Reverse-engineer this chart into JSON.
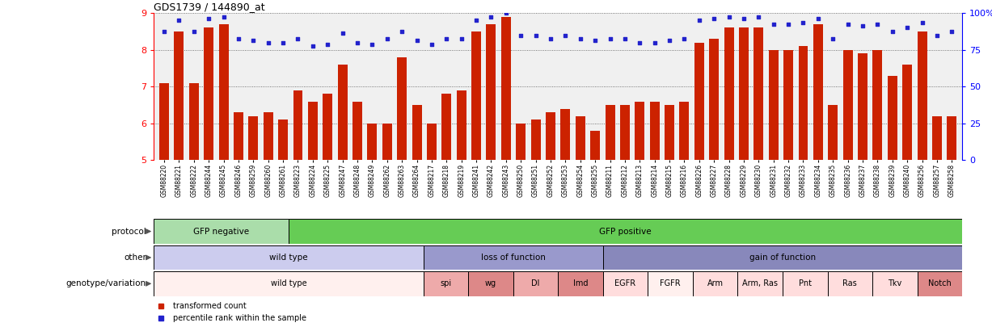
{
  "title": "GDS1739 / 144890_at",
  "samples": [
    "GSM88220",
    "GSM88221",
    "GSM88222",
    "GSM88244",
    "GSM88245",
    "GSM88246",
    "GSM88259",
    "GSM88260",
    "GSM88261",
    "GSM88223",
    "GSM88224",
    "GSM88225",
    "GSM88247",
    "GSM88248",
    "GSM88249",
    "GSM88262",
    "GSM88263",
    "GSM88264",
    "GSM88217",
    "GSM88218",
    "GSM88219",
    "GSM88241",
    "GSM88242",
    "GSM88243",
    "GSM88250",
    "GSM88251",
    "GSM88252",
    "GSM88253",
    "GSM88254",
    "GSM88255",
    "GSM88211",
    "GSM88212",
    "GSM88213",
    "GSM88214",
    "GSM88215",
    "GSM88216",
    "GSM88226",
    "GSM88227",
    "GSM88228",
    "GSM88229",
    "GSM88230",
    "GSM88231",
    "GSM88232",
    "GSM88233",
    "GSM88234",
    "GSM88235",
    "GSM88236",
    "GSM88237",
    "GSM88238",
    "GSM88239",
    "GSM88240",
    "GSM88256",
    "GSM88257",
    "GSM88258"
  ],
  "bar_values": [
    7.1,
    8.5,
    7.1,
    8.6,
    8.7,
    6.3,
    6.2,
    6.3,
    6.1,
    6.9,
    6.6,
    6.8,
    7.6,
    6.6,
    6.0,
    6.0,
    7.8,
    6.5,
    6.0,
    6.8,
    6.9,
    8.5,
    8.7,
    8.9,
    6.0,
    6.1,
    6.3,
    6.4,
    6.2,
    5.8,
    6.5,
    6.5,
    6.6,
    6.6,
    6.5,
    6.6,
    8.2,
    8.3,
    8.6,
    8.6,
    8.6,
    8.0,
    8.0,
    8.1,
    8.7,
    6.5,
    8.0,
    7.9,
    8.0,
    7.3,
    7.6,
    8.5,
    6.2,
    6.2
  ],
  "dot_values": [
    8.5,
    8.8,
    8.5,
    8.85,
    8.9,
    8.3,
    8.25,
    8.2,
    8.2,
    8.3,
    8.1,
    8.15,
    8.45,
    8.2,
    8.15,
    8.3,
    8.5,
    8.25,
    8.15,
    8.3,
    8.3,
    8.8,
    8.9,
    9.0,
    8.4,
    8.4,
    8.3,
    8.4,
    8.3,
    8.25,
    8.3,
    8.3,
    8.2,
    8.2,
    8.25,
    8.3,
    8.8,
    8.85,
    8.9,
    8.85,
    8.9,
    8.7,
    8.7,
    8.75,
    8.85,
    8.3,
    8.7,
    8.65,
    8.7,
    8.5,
    8.6,
    8.75,
    8.4,
    8.5
  ],
  "ylim_left": [
    5,
    9
  ],
  "yticks_left": [
    5,
    6,
    7,
    8,
    9
  ],
  "ylim_right": [
    0,
    100
  ],
  "yticks_right": [
    0,
    25,
    50,
    75,
    100
  ],
  "bar_color": "#cc2200",
  "dot_color": "#2222cc",
  "chart_bg": "#f0f0f0",
  "protocol_row": {
    "groups": [
      {
        "label": "GFP negative",
        "start": 0,
        "end": 9,
        "color": "#aaddaa"
      },
      {
        "label": "GFP positive",
        "start": 9,
        "end": 54,
        "color": "#66cc55"
      }
    ]
  },
  "other_row": {
    "groups": [
      {
        "label": "wild type",
        "start": 0,
        "end": 18,
        "color": "#ccccee"
      },
      {
        "label": "loss of function",
        "start": 18,
        "end": 30,
        "color": "#9999cc"
      },
      {
        "label": "gain of function",
        "start": 30,
        "end": 54,
        "color": "#8888bb"
      }
    ]
  },
  "genotype_row": {
    "groups": [
      {
        "label": "wild type",
        "start": 0,
        "end": 18,
        "color": "#fff0ee"
      },
      {
        "label": "spi",
        "start": 18,
        "end": 21,
        "color": "#eeaaaa"
      },
      {
        "label": "wg",
        "start": 21,
        "end": 24,
        "color": "#dd8888"
      },
      {
        "label": "Dl",
        "start": 24,
        "end": 27,
        "color": "#eeaaaa"
      },
      {
        "label": "Imd",
        "start": 27,
        "end": 30,
        "color": "#dd8888"
      },
      {
        "label": "EGFR",
        "start": 30,
        "end": 33,
        "color": "#ffdddd"
      },
      {
        "label": "FGFR",
        "start": 33,
        "end": 36,
        "color": "#fff0ee"
      },
      {
        "label": "Arm",
        "start": 36,
        "end": 39,
        "color": "#ffdddd"
      },
      {
        "label": "Arm, Ras",
        "start": 39,
        "end": 42,
        "color": "#ffdddd"
      },
      {
        "label": "Pnt",
        "start": 42,
        "end": 45,
        "color": "#ffdddd"
      },
      {
        "label": "Ras",
        "start": 45,
        "end": 48,
        "color": "#ffdddd"
      },
      {
        "label": "Tkv",
        "start": 48,
        "end": 51,
        "color": "#ffdddd"
      },
      {
        "label": "Notch",
        "start": 51,
        "end": 54,
        "color": "#dd8888"
      }
    ]
  },
  "row_labels": [
    "protocol",
    "other",
    "genotype/variation"
  ],
  "legend_items": [
    {
      "label": "transformed count",
      "color": "#cc2200"
    },
    {
      "label": "percentile rank within the sample",
      "color": "#2222cc"
    }
  ]
}
